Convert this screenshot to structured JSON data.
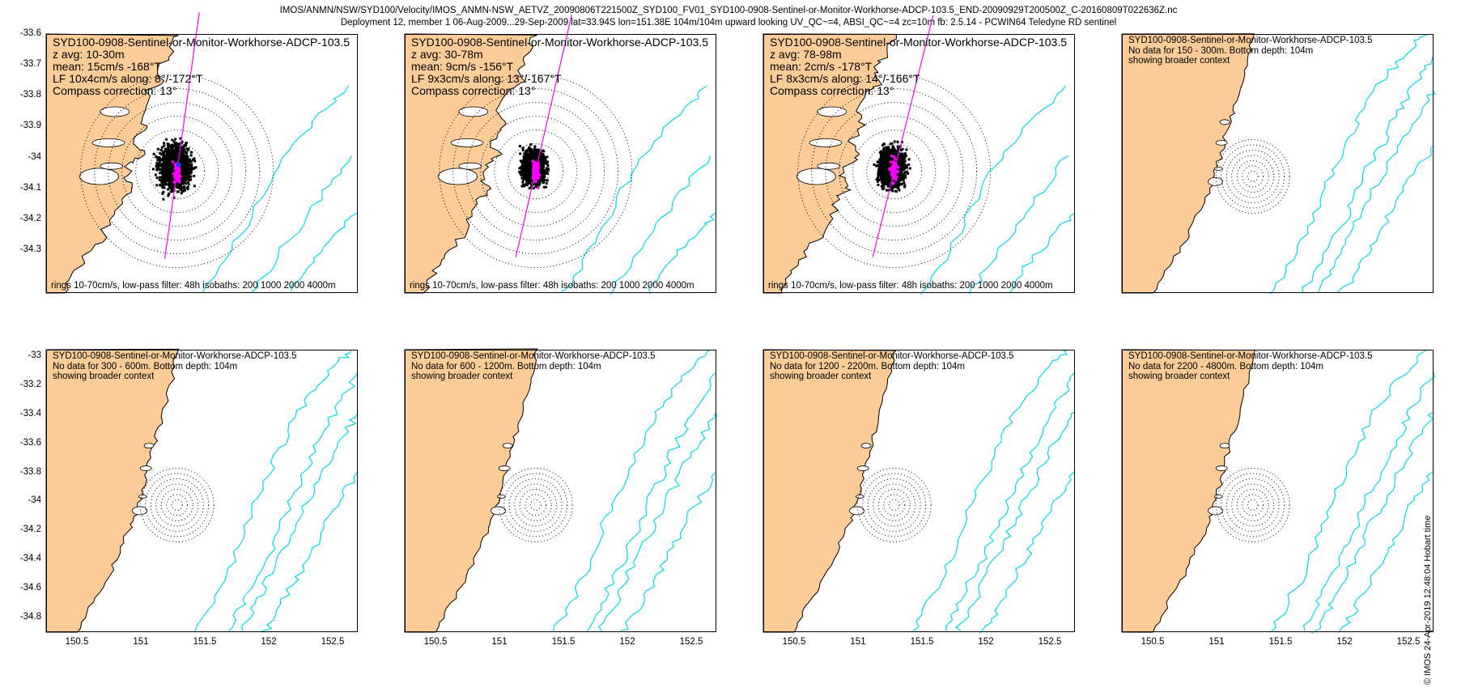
{
  "header": {
    "line1": "IMOS/ANMN/NSW/SYD100/Velocity/IMOS_ANMN-NSW_AETVZ_20090806T221500Z_SYD100_FV01_SYD100-0908-Sentinel-or-Monitor-Workhorse-ADCP-103.5_END-20090929T200500Z_C-20160809T022636Z.nc",
    "line2": "Deployment 12, member 1 06-Aug-2009...29-Sep-2009 lat=33.94S lon=151.38E 104m/104m upward looking UV_QC~=4, ABSI_QC~=4 zc=10m fb: 2.5.14 - PCWIN64 Teledyne RD sentinel"
  },
  "colors": {
    "land": "#fbcb98",
    "isobath": "#00d8ee",
    "current_arrow": "#ff00ff",
    "rings": "#000000",
    "scatter": "#000000"
  },
  "axes": {
    "x_ticks": [
      "150.5",
      "151",
      "151.5",
      "152",
      "152.5"
    ],
    "top_y_ticks": [
      "-33.6",
      "-33.7",
      "-33.8",
      "-33.9",
      "-34",
      "-34.1",
      "-34.2",
      "-34.3"
    ],
    "bottom_y_ticks": [
      "-33",
      "-33.2",
      "-33.4",
      "-33.6",
      "-33.8",
      "-34",
      "-34.2",
      "-34.4",
      "-34.6",
      "-34.8"
    ]
  },
  "footer_note": "rings 10-70cm/s, low-pass filter: 48h isobaths: 200 1000 2000 4000m",
  "stamp": "© IMOS 24-Apr-2019 12:48:04 Hobart time",
  "panels": [
    {
      "lines": [
        "SYD100-0908-Sentinel-or-Monitor-Workhorse-ADCP-103.5",
        "z avg: 10-30m",
        "mean: 15cm/s -168°T",
        "LF 10x4cm/s along: 8°/-172°T",
        "Compass correction: 13°"
      ],
      "type": "data",
      "spread": 1.0,
      "angle": 8
    },
    {
      "lines": [
        "SYD100-0908-Sentinel-or-Monitor-Workhorse-ADCP-103.5",
        "z avg: 30-78m",
        "mean: 9cm/s -156°T",
        "LF 9x3cm/s along: 13°/-167°T",
        "Compass correction: 13°"
      ],
      "type": "data",
      "spread": 0.75,
      "angle": 13
    },
    {
      "lines": [
        "SYD100-0908-Sentinel-or-Monitor-Workhorse-ADCP-103.5",
        "z avg: 78-98m",
        "mean: 2cm/s -178°T",
        "LF 8x3cm/s along: 14°/-166°T",
        "Compass correction: 13°"
      ],
      "type": "data",
      "spread": 0.85,
      "angle": 14
    },
    {
      "lines": [
        "SYD100-0908-Sentinel-or-Monitor-Workhorse-ADCP-103.5",
        "No data for 150 - 300m. Bottom depth: 104m",
        "showing broader context"
      ],
      "type": "context"
    },
    {
      "lines": [
        "SYD100-0908-Sentinel-or-Monitor-Workhorse-ADCP-103.5",
        "No data for 300 - 600m. Bottom depth: 104m",
        "showing broader context"
      ],
      "type": "context"
    },
    {
      "lines": [
        "SYD100-0908-Sentinel-or-Monitor-Workhorse-ADCP-103.5",
        "No data for 600 - 1200m. Bottom depth: 104m",
        "showing broader context"
      ],
      "type": "context"
    },
    {
      "lines": [
        "SYD100-0908-Sentinel-or-Monitor-Workhorse-ADCP-103.5",
        "No data for 1200 - 2200m. Bottom depth: 104m",
        "showing broader context"
      ],
      "type": "context"
    },
    {
      "lines": [
        "SYD100-0908-Sentinel-or-Monitor-Workhorse-ADCP-103.5",
        "No data for 2200 - 4800m. Bottom depth: 104m",
        "showing broader context"
      ],
      "type": "context"
    }
  ]
}
